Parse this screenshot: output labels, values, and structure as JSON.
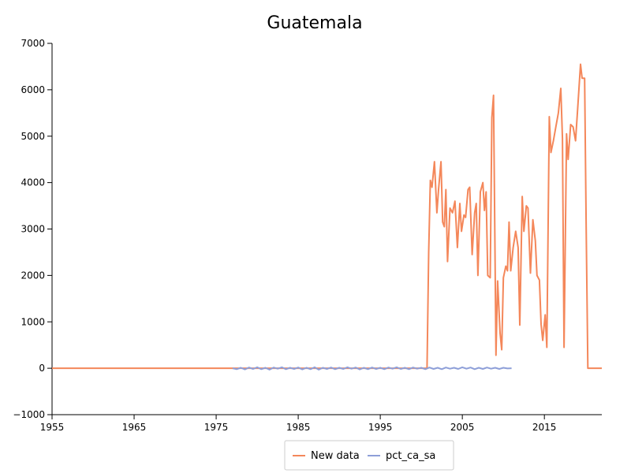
{
  "chart_data": {
    "type": "line",
    "title": "Guatemala",
    "xlabel": "",
    "ylabel": "",
    "xlim": [
      1955,
      2022
    ],
    "ylim": [
      -1000,
      7000
    ],
    "xticks": [
      1955,
      1965,
      1975,
      1985,
      1995,
      2005,
      2015
    ],
    "yticks": [
      -1000,
      0,
      1000,
      2000,
      3000,
      4000,
      5000,
      6000,
      7000
    ],
    "ytick_labels": [
      "−1000",
      "0",
      "1000",
      "2000",
      "3000",
      "4000",
      "5000",
      "6000",
      "7000"
    ],
    "grid": false,
    "legend_position": "bottom-center",
    "series": [
      {
        "name": "New data",
        "color": "#f4875a",
        "points": [
          [
            1955,
            0
          ],
          [
            1977,
            0
          ],
          [
            1990,
            0
          ],
          [
            2000.7,
            0
          ],
          [
            2000.9,
            2500
          ],
          [
            2001.1,
            4050
          ],
          [
            2001.3,
            3900
          ],
          [
            2001.6,
            4450
          ],
          [
            2001.9,
            3350
          ],
          [
            2002.1,
            3850
          ],
          [
            2002.4,
            4450
          ],
          [
            2002.6,
            3150
          ],
          [
            2002.8,
            3050
          ],
          [
            2003.0,
            3850
          ],
          [
            2003.2,
            2300
          ],
          [
            2003.5,
            3450
          ],
          [
            2003.8,
            3350
          ],
          [
            2004.1,
            3600
          ],
          [
            2004.4,
            2600
          ],
          [
            2004.7,
            3550
          ],
          [
            2004.9,
            2950
          ],
          [
            2005.2,
            3300
          ],
          [
            2005.4,
            3250
          ],
          [
            2005.7,
            3850
          ],
          [
            2005.9,
            3900
          ],
          [
            2006.2,
            2450
          ],
          [
            2006.5,
            3350
          ],
          [
            2006.7,
            3550
          ],
          [
            2006.9,
            2000
          ],
          [
            2007.2,
            3800
          ],
          [
            2007.5,
            4000
          ],
          [
            2007.7,
            3400
          ],
          [
            2007.9,
            3800
          ],
          [
            2008.1,
            2000
          ],
          [
            2008.4,
            1950
          ],
          [
            2008.6,
            5400
          ],
          [
            2008.8,
            5880
          ],
          [
            2009.1,
            280
          ],
          [
            2009.3,
            1880
          ],
          [
            2009.6,
            760
          ],
          [
            2009.8,
            400
          ],
          [
            2010.0,
            1950
          ],
          [
            2010.3,
            2200
          ],
          [
            2010.5,
            2100
          ],
          [
            2010.7,
            3150
          ],
          [
            2010.9,
            2100
          ],
          [
            2011.2,
            2600
          ],
          [
            2011.5,
            2950
          ],
          [
            2011.8,
            2600
          ],
          [
            2012.0,
            930
          ],
          [
            2012.3,
            3700
          ],
          [
            2012.5,
            2950
          ],
          [
            2012.8,
            3500
          ],
          [
            2013.0,
            3450
          ],
          [
            2013.3,
            2050
          ],
          [
            2013.6,
            3200
          ],
          [
            2013.9,
            2750
          ],
          [
            2014.1,
            2000
          ],
          [
            2014.4,
            1900
          ],
          [
            2014.6,
            950
          ],
          [
            2014.8,
            600
          ],
          [
            2015.1,
            1150
          ],
          [
            2015.3,
            450
          ],
          [
            2015.6,
            5420
          ],
          [
            2015.8,
            4650
          ],
          [
            2016.1,
            4900
          ],
          [
            2016.4,
            5200
          ],
          [
            2016.7,
            5500
          ],
          [
            2017.0,
            6030
          ],
          [
            2017.2,
            4950
          ],
          [
            2017.4,
            450
          ],
          [
            2017.7,
            5050
          ],
          [
            2017.9,
            4500
          ],
          [
            2018.2,
            5250
          ],
          [
            2018.5,
            5200
          ],
          [
            2018.8,
            4900
          ],
          [
            2019.1,
            5700
          ],
          [
            2019.4,
            6550
          ],
          [
            2019.6,
            6250
          ],
          [
            2019.9,
            6250
          ],
          [
            2020.1,
            3000
          ],
          [
            2020.3,
            0
          ],
          [
            2022,
            0
          ]
        ]
      },
      {
        "name": "pct_ca_sa",
        "color": "#8e9fd8",
        "points": [
          [
            1977.0,
            0
          ],
          [
            1977.5,
            -20
          ],
          [
            1978.0,
            10
          ],
          [
            1978.5,
            -25
          ],
          [
            1979.0,
            15
          ],
          [
            1979.5,
            -15
          ],
          [
            1980.0,
            20
          ],
          [
            1980.5,
            -20
          ],
          [
            1981.0,
            10
          ],
          [
            1981.5,
            -30
          ],
          [
            1982.0,
            15
          ],
          [
            1982.5,
            -10
          ],
          [
            1983.0,
            20
          ],
          [
            1983.5,
            -20
          ],
          [
            1984.0,
            10
          ],
          [
            1984.5,
            -15
          ],
          [
            1985.0,
            15
          ],
          [
            1985.5,
            -25
          ],
          [
            1986.0,
            10
          ],
          [
            1986.5,
            -20
          ],
          [
            1987.0,
            20
          ],
          [
            1987.5,
            -30
          ],
          [
            1988.0,
            10
          ],
          [
            1988.5,
            -15
          ],
          [
            1989.0,
            15
          ],
          [
            1989.5,
            -20
          ],
          [
            1990.0,
            10
          ],
          [
            1990.5,
            -15
          ],
          [
            1991.0,
            20
          ],
          [
            1991.5,
            -10
          ],
          [
            1992.0,
            15
          ],
          [
            1992.5,
            -25
          ],
          [
            1993.0,
            10
          ],
          [
            1993.5,
            -20
          ],
          [
            1994.0,
            15
          ],
          [
            1994.5,
            -15
          ],
          [
            1995.0,
            10
          ],
          [
            1995.5,
            -20
          ],
          [
            1996.0,
            15
          ],
          [
            1996.5,
            -10
          ],
          [
            1997.0,
            20
          ],
          [
            1997.5,
            -15
          ],
          [
            1998.0,
            10
          ],
          [
            1998.5,
            -20
          ],
          [
            1999.0,
            15
          ],
          [
            1999.5,
            -10
          ],
          [
            2000.0,
            10
          ],
          [
            2000.5,
            -20
          ],
          [
            2001.0,
            15
          ],
          [
            2001.5,
            -15
          ],
          [
            2002.0,
            10
          ],
          [
            2002.5,
            -20
          ],
          [
            2003.0,
            15
          ],
          [
            2003.5,
            -10
          ],
          [
            2004.0,
            10
          ],
          [
            2004.5,
            -15
          ],
          [
            2005.0,
            20
          ],
          [
            2005.5,
            -10
          ],
          [
            2006.0,
            15
          ],
          [
            2006.5,
            -20
          ],
          [
            2007.0,
            10
          ],
          [
            2007.5,
            -15
          ],
          [
            2008.0,
            15
          ],
          [
            2008.5,
            -10
          ],
          [
            2009.0,
            10
          ],
          [
            2009.5,
            -15
          ],
          [
            2010.0,
            10
          ],
          [
            2010.5,
            -5
          ],
          [
            2011.0,
            0
          ]
        ]
      }
    ]
  }
}
